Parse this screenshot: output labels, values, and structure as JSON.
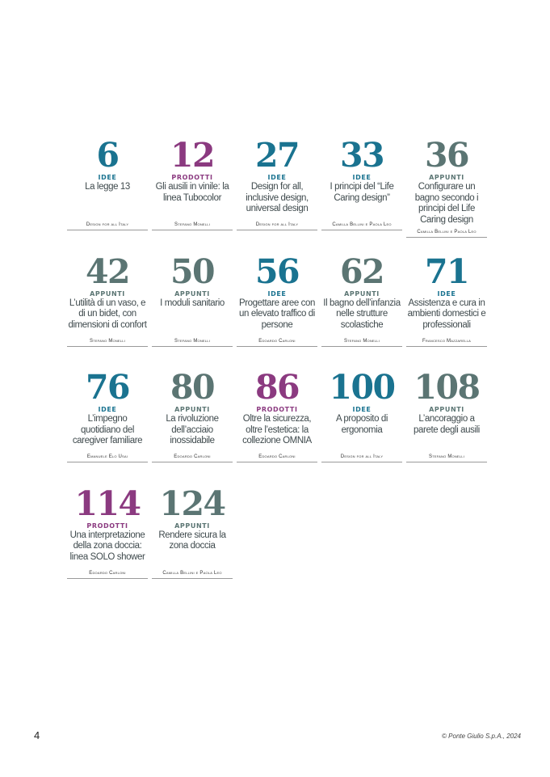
{
  "colors": {
    "IDEE": "#1a7390",
    "PRODOTTI": "#8b3a80",
    "APPUNTI": "#5b7573"
  },
  "entries": [
    {
      "page": "6",
      "category": "IDEE",
      "title": "La legge 13",
      "author": "Design for all Italy"
    },
    {
      "page": "12",
      "category": "PRODOTTI",
      "title": "Gli ausili in vinile: la linea Tubocolor",
      "author": "Stefano Monelli"
    },
    {
      "page": "27",
      "category": "IDEE",
      "title": "Design for all, inclusive design, universal design",
      "author": "Design for all Italy"
    },
    {
      "page": "33",
      "category": "IDEE",
      "title": "I principi del “Life Caring design”",
      "author": "Camilla Bellini e Paola Leo"
    },
    {
      "page": "36",
      "category": "APPUNTI",
      "title": "Configurare un bagno secondo i principi del Life Caring design",
      "author": "Camilla Bellini e Paola Leo"
    },
    {
      "page": "42",
      "category": "APPUNTI",
      "title": "L’utilità di un vaso, e di un bidet, con dimensioni di confort",
      "author": "Stefano Monelli"
    },
    {
      "page": "50",
      "category": "APPUNTI",
      "title": "I moduli sanitario",
      "author": "Stefano Monelli"
    },
    {
      "page": "56",
      "category": "IDEE",
      "title": "Progettare aree con un elevato traffico di persone",
      "author": "Edoardo Carloni"
    },
    {
      "page": "62",
      "category": "APPUNTI",
      "title": "Il bagno dell’infanzia nelle strutture scolastiche",
      "author": "Stefano Monelli"
    },
    {
      "page": "71",
      "category": "IDEE",
      "title": "Assistenza e cura in ambienti domestici e professionali",
      "author": "Francesco Mazzarella"
    },
    {
      "page": "76",
      "category": "IDEE",
      "title": "L’impegno quotidiano del caregiver familiare",
      "author": "Emanuele Elo Usai"
    },
    {
      "page": "80",
      "category": "APPUNTI",
      "title": "La rivoluzione dell’acciaio inossidabile",
      "author": "Edoardo Carloni"
    },
    {
      "page": "86",
      "category": "PRODOTTI",
      "title": "Oltre la sicurezza, oltre l’estetica: la collezione OMNIA",
      "author": "Edoardo Carloni"
    },
    {
      "page": "100",
      "category": "IDEE",
      "title": "A proposito di ergonomia",
      "author": "Design for all Italy"
    },
    {
      "page": "108",
      "category": "APPUNTI",
      "title": "L’ancoraggio a parete degli ausili",
      "author": "Stefano Monelli"
    },
    {
      "page": "114",
      "category": "PRODOTTI",
      "title": "Una interpretazione della zona doccia: linea SOLO shower",
      "author": "Edoardo Carloni"
    },
    {
      "page": "124",
      "category": "APPUNTI",
      "title": "Rendere sicura la zona doccia",
      "author": "Camilla Bellini e Paola Leo"
    }
  ],
  "footer": {
    "page_number": "4",
    "copyright": "© Ponte Giulio S.p.A., 2024"
  }
}
